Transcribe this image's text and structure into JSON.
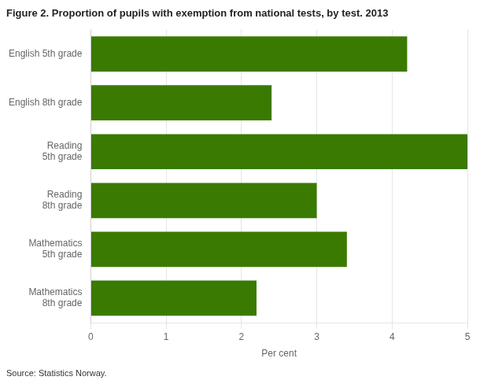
{
  "chart_data": {
    "type": "bar",
    "orientation": "horizontal",
    "title": "Figure 2. Proportion of pupils with exemption from national tests, by test. 2013",
    "annotations": [
      "Source: Statistics Norway."
    ],
    "categories": [
      "English 5th grade",
      "English 8th grade",
      "Reading\n5th grade",
      "Reading\n8th grade",
      "Mathematics\n5th grade",
      "Mathematics\n8th grade"
    ],
    "values": [
      4.2,
      2.4,
      5.0,
      3.0,
      3.4,
      2.2
    ],
    "color": "#3a7a00",
    "xlabel": "Per cent",
    "xlim": [
      0,
      5
    ],
    "xticks": [
      0,
      1,
      2,
      3,
      4,
      5
    ],
    "grid": true
  }
}
